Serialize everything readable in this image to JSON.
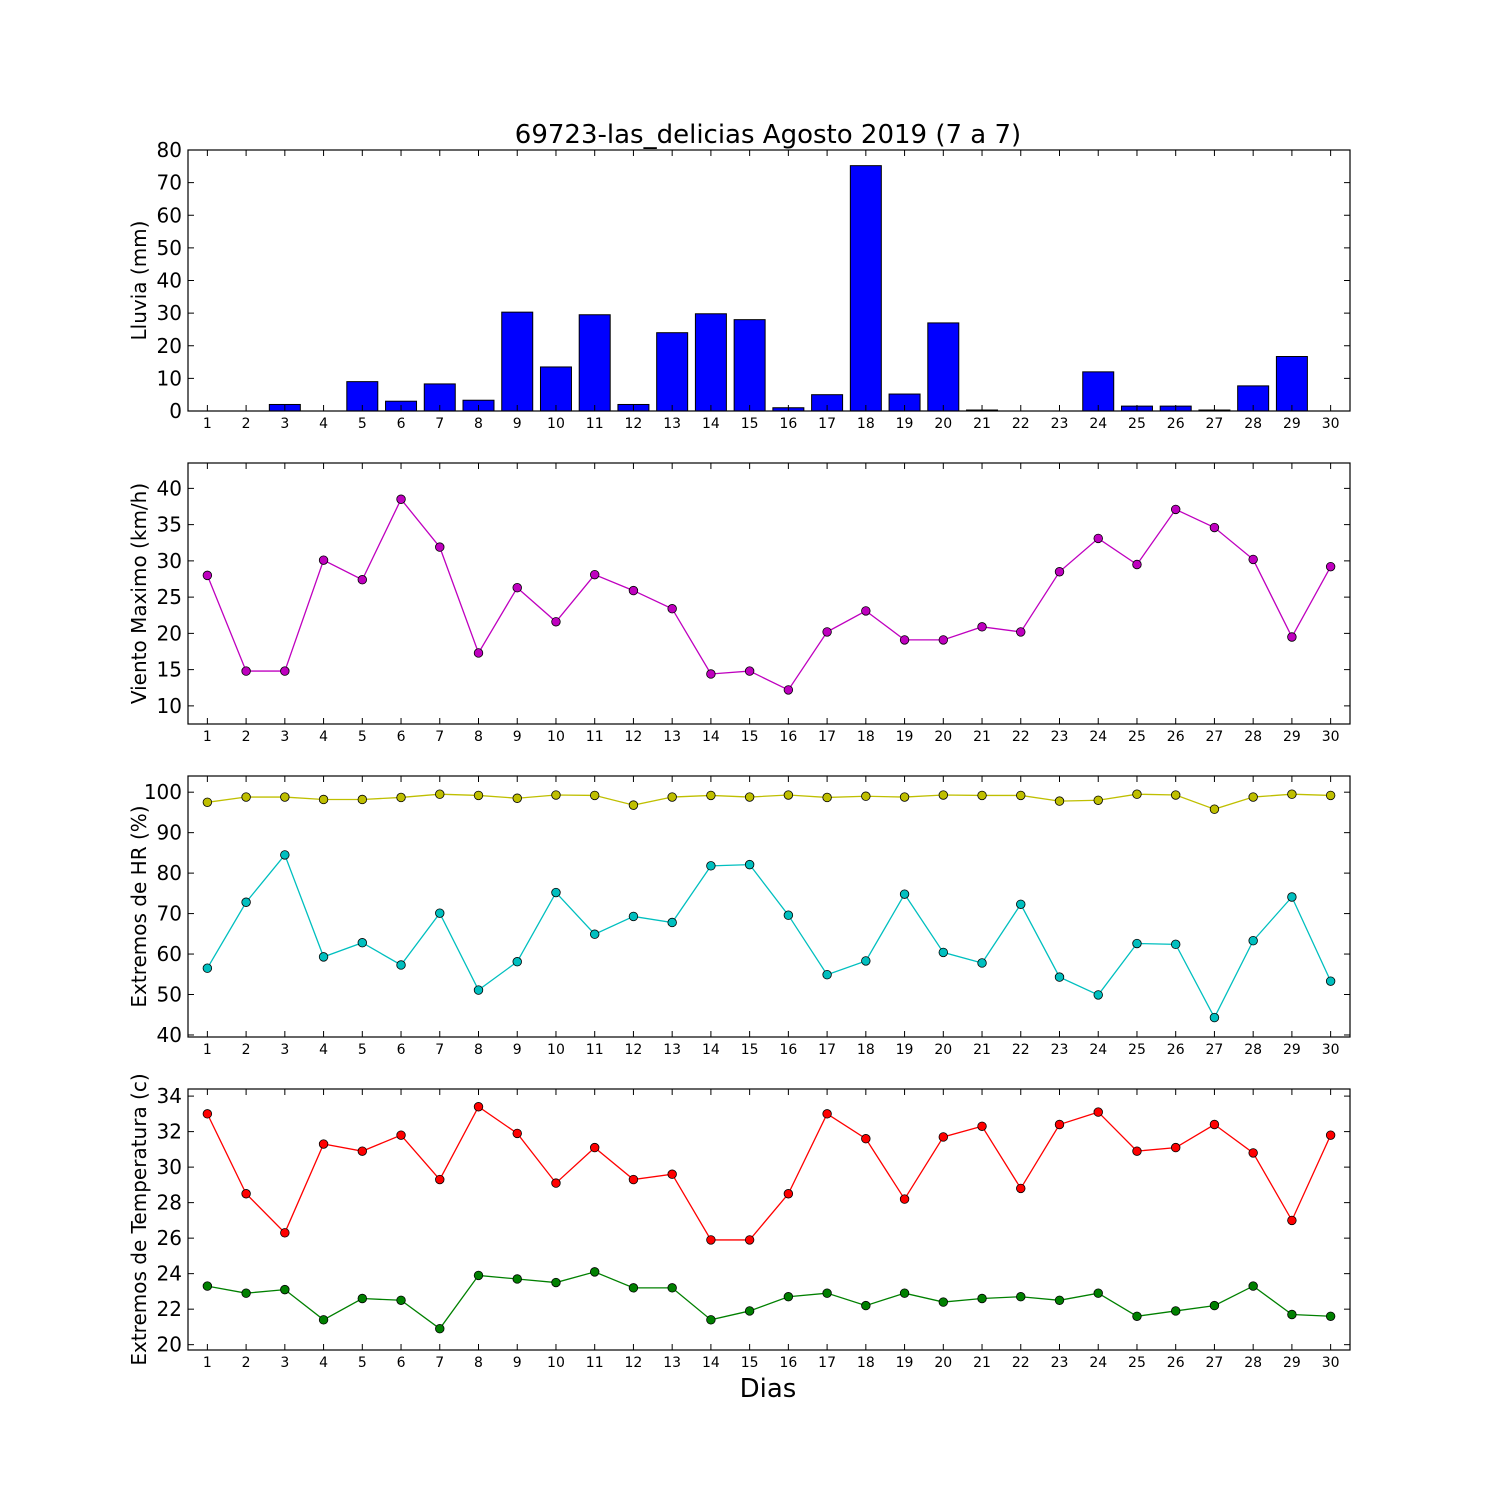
{
  "title": "69723-las_delicias Agosto 2019  (7 a 7)",
  "xlabel": "Dias",
  "chart_data": [
    {
      "type": "bar",
      "ylabel": "Lluvia (mm)",
      "categories": [
        1,
        2,
        3,
        4,
        5,
        6,
        7,
        8,
        9,
        10,
        11,
        12,
        13,
        14,
        15,
        16,
        17,
        18,
        19,
        20,
        21,
        22,
        23,
        24,
        25,
        26,
        27,
        28,
        29,
        30
      ],
      "values": [
        0,
        0,
        2,
        0,
        9,
        3,
        8.3,
        3.3,
        30.3,
        13.5,
        29.5,
        2,
        24,
        29.8,
        28,
        1,
        5,
        75.2,
        5.2,
        27,
        0.3,
        0,
        0,
        12,
        1.5,
        1.5,
        0.3,
        7.7,
        16.7,
        0
      ],
      "ylim": [
        0,
        80
      ],
      "yticks": [
        0,
        10,
        20,
        30,
        40,
        50,
        60,
        70,
        80
      ],
      "colors": {
        "bar": "#0000ff"
      },
      "grid": false
    },
    {
      "type": "line",
      "ylabel": "Viento Maximo (km/h)",
      "x": [
        1,
        2,
        3,
        4,
        5,
        6,
        7,
        8,
        9,
        10,
        11,
        12,
        13,
        14,
        15,
        16,
        17,
        18,
        19,
        20,
        21,
        22,
        23,
        24,
        25,
        26,
        27,
        28,
        29,
        30
      ],
      "series": [
        {
          "values": [
            28,
            14.8,
            14.8,
            30.1,
            27.4,
            38.5,
            31.9,
            17.3,
            26.3,
            21.6,
            28.1,
            25.9,
            23.4,
            14.4,
            14.8,
            12.2,
            20.2,
            23.1,
            19.1,
            19.1,
            20.9,
            20.2,
            28.5,
            33.1,
            29.5,
            37.1,
            34.6,
            30.2,
            19.5,
            29.2
          ],
          "color": "#bf00bf"
        }
      ],
      "ylim": [
        7.5,
        43.5
      ],
      "yticks": [
        10,
        15,
        20,
        25,
        30,
        35,
        40
      ],
      "grid": false
    },
    {
      "type": "line",
      "ylabel": "Extremos de HR (%)",
      "x": [
        1,
        2,
        3,
        4,
        5,
        6,
        7,
        8,
        9,
        10,
        11,
        12,
        13,
        14,
        15,
        16,
        17,
        18,
        19,
        20,
        21,
        22,
        23,
        24,
        25,
        26,
        27,
        28,
        29,
        30
      ],
      "series": [
        {
          "values": [
            97.5,
            98.8,
            98.8,
            98.2,
            98.2,
            98.7,
            99.5,
            99.2,
            98.5,
            99.3,
            99.2,
            96.8,
            98.8,
            99.2,
            98.8,
            99.3,
            98.7,
            99,
            98.8,
            99.3,
            99.2,
            99.2,
            97.8,
            98,
            99.5,
            99.3,
            95.8,
            98.8,
            99.5,
            99.2
          ],
          "color": "#bfbf00"
        },
        {
          "values": [
            56.5,
            72.8,
            84.5,
            59.3,
            62.8,
            57.3,
            70.1,
            51.1,
            58.1,
            75.2,
            64.9,
            69.3,
            67.8,
            81.8,
            82.1,
            69.6,
            54.9,
            58.3,
            74.8,
            60.4,
            57.8,
            72.3,
            54.3,
            49.9,
            62.6,
            62.4,
            44.3,
            63.3,
            74.1,
            53.3
          ],
          "color": "#00bfbf"
        }
      ],
      "ylim": [
        39.5,
        104
      ],
      "yticks": [
        40,
        50,
        60,
        70,
        80,
        90,
        100
      ],
      "grid": false
    },
    {
      "type": "line",
      "ylabel": "Extremos de Temperatura (c)",
      "x": [
        1,
        2,
        3,
        4,
        5,
        6,
        7,
        8,
        9,
        10,
        11,
        12,
        13,
        14,
        15,
        16,
        17,
        18,
        19,
        20,
        21,
        22,
        23,
        24,
        25,
        26,
        27,
        28,
        29,
        30
      ],
      "series": [
        {
          "values": [
            33,
            28.5,
            26.3,
            31.3,
            30.9,
            31.8,
            29.3,
            33.4,
            31.9,
            29.1,
            31.1,
            29.3,
            29.6,
            25.9,
            25.9,
            28.5,
            33,
            31.6,
            28.2,
            31.7,
            32.3,
            28.8,
            32.4,
            33.1,
            30.9,
            31.1,
            32.4,
            30.8,
            27,
            31.8
          ],
          "color": "#ff0000"
        },
        {
          "values": [
            23.3,
            22.9,
            23.1,
            21.4,
            22.6,
            22.5,
            20.9,
            23.9,
            23.7,
            23.5,
            24.1,
            23.2,
            23.2,
            21.4,
            21.9,
            22.7,
            22.9,
            22.2,
            22.9,
            22.4,
            22.6,
            22.7,
            22.5,
            22.9,
            21.6,
            21.9,
            22.2,
            23.3,
            21.7,
            21.6
          ],
          "color": "#008000"
        }
      ],
      "ylim": [
        19.7,
        34.4
      ],
      "yticks": [
        20,
        22,
        24,
        26,
        28,
        30,
        32,
        34
      ],
      "grid": false
    }
  ]
}
